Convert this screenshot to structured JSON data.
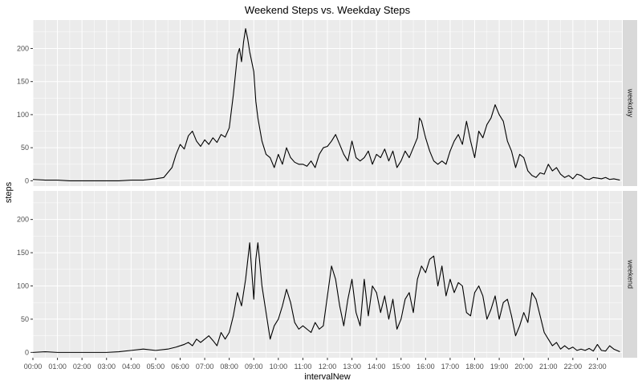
{
  "chart_data": {
    "type": "line",
    "title": "Weekend Steps vs. Weekday Steps",
    "xlabel": "intervalNew",
    "ylabel": "steps",
    "xlim": [
      "00:00",
      "24:00"
    ],
    "ylim": [
      -8,
      243
    ],
    "x_ticks": [
      "00:00",
      "01:00",
      "02:00",
      "03:00",
      "04:00",
      "05:00",
      "06:00",
      "07:00",
      "08:00",
      "09:00",
      "10:00",
      "11:00",
      "12:00",
      "13:00",
      "14:00",
      "15:00",
      "16:00",
      "17:00",
      "18:00",
      "19:00",
      "20:00",
      "21:00",
      "22:00",
      "23:00"
    ],
    "y_ticks": [
      0,
      50,
      100,
      150,
      200
    ],
    "grid": true,
    "legend": "none",
    "colors": {
      "line": "#000000",
      "panel": "#ebebeb",
      "grid": "#ffffff",
      "strip": "#d9d9d9"
    },
    "facets": [
      {
        "label": "weekday",
        "points": [
          [
            "00:00",
            2
          ],
          [
            "00:30",
            1
          ],
          [
            "01:00",
            1
          ],
          [
            "01:30",
            0
          ],
          [
            "02:00",
            0
          ],
          [
            "02:30",
            0
          ],
          [
            "03:00",
            0
          ],
          [
            "03:30",
            0
          ],
          [
            "04:00",
            1
          ],
          [
            "04:30",
            1
          ],
          [
            "05:00",
            3
          ],
          [
            "05:20",
            5
          ],
          [
            "05:40",
            20
          ],
          [
            "05:50",
            40
          ],
          [
            "06:00",
            55
          ],
          [
            "06:10",
            48
          ],
          [
            "06:20",
            68
          ],
          [
            "06:30",
            75
          ],
          [
            "06:40",
            60
          ],
          [
            "06:50",
            52
          ],
          [
            "07:00",
            62
          ],
          [
            "07:10",
            55
          ],
          [
            "07:20",
            65
          ],
          [
            "07:30",
            58
          ],
          [
            "07:40",
            70
          ],
          [
            "07:50",
            66
          ],
          [
            "08:00",
            80
          ],
          [
            "08:10",
            130
          ],
          [
            "08:20",
            190
          ],
          [
            "08:25",
            200
          ],
          [
            "08:30",
            180
          ],
          [
            "08:35",
            210
          ],
          [
            "08:40",
            230
          ],
          [
            "08:45",
            215
          ],
          [
            "08:50",
            195
          ],
          [
            "08:55",
            180
          ],
          [
            "09:00",
            165
          ],
          [
            "09:05",
            120
          ],
          [
            "09:10",
            95
          ],
          [
            "09:20",
            60
          ],
          [
            "09:30",
            40
          ],
          [
            "09:40",
            35
          ],
          [
            "09:50",
            20
          ],
          [
            "10:00",
            40
          ],
          [
            "10:10",
            25
          ],
          [
            "10:20",
            50
          ],
          [
            "10:30",
            35
          ],
          [
            "10:40",
            28
          ],
          [
            "10:50",
            25
          ],
          [
            "11:00",
            25
          ],
          [
            "11:10",
            22
          ],
          [
            "11:20",
            30
          ],
          [
            "11:30",
            20
          ],
          [
            "11:40",
            40
          ],
          [
            "11:50",
            50
          ],
          [
            "12:00",
            52
          ],
          [
            "12:10",
            60
          ],
          [
            "12:20",
            70
          ],
          [
            "12:30",
            55
          ],
          [
            "12:40",
            40
          ],
          [
            "12:50",
            30
          ],
          [
            "13:00",
            60
          ],
          [
            "13:10",
            35
          ],
          [
            "13:20",
            30
          ],
          [
            "13:30",
            35
          ],
          [
            "13:40",
            45
          ],
          [
            "13:50",
            25
          ],
          [
            "14:00",
            40
          ],
          [
            "14:10",
            35
          ],
          [
            "14:20",
            48
          ],
          [
            "14:30",
            30
          ],
          [
            "14:40",
            45
          ],
          [
            "14:50",
            20
          ],
          [
            "15:00",
            30
          ],
          [
            "15:10",
            45
          ],
          [
            "15:20",
            35
          ],
          [
            "15:30",
            50
          ],
          [
            "15:40",
            65
          ],
          [
            "15:45",
            95
          ],
          [
            "15:50",
            90
          ],
          [
            "16:00",
            65
          ],
          [
            "16:10",
            45
          ],
          [
            "16:20",
            30
          ],
          [
            "16:30",
            25
          ],
          [
            "16:40",
            30
          ],
          [
            "16:50",
            25
          ],
          [
            "17:00",
            45
          ],
          [
            "17:10",
            60
          ],
          [
            "17:20",
            70
          ],
          [
            "17:30",
            55
          ],
          [
            "17:40",
            90
          ],
          [
            "17:50",
            60
          ],
          [
            "18:00",
            35
          ],
          [
            "18:10",
            75
          ],
          [
            "18:20",
            65
          ],
          [
            "18:30",
            85
          ],
          [
            "18:40",
            95
          ],
          [
            "18:50",
            115
          ],
          [
            "19:00",
            100
          ],
          [
            "19:10",
            90
          ],
          [
            "19:20",
            60
          ],
          [
            "19:30",
            45
          ],
          [
            "19:40",
            20
          ],
          [
            "19:50",
            40
          ],
          [
            "20:00",
            35
          ],
          [
            "20:10",
            15
          ],
          [
            "20:20",
            8
          ],
          [
            "20:30",
            5
          ],
          [
            "20:40",
            12
          ],
          [
            "20:50",
            10
          ],
          [
            "21:00",
            25
          ],
          [
            "21:10",
            15
          ],
          [
            "21:20",
            20
          ],
          [
            "21:30",
            10
          ],
          [
            "21:40",
            5
          ],
          [
            "21:50",
            8
          ],
          [
            "22:00",
            3
          ],
          [
            "22:10",
            10
          ],
          [
            "22:20",
            8
          ],
          [
            "22:30",
            3
          ],
          [
            "22:40",
            2
          ],
          [
            "22:50",
            5
          ],
          [
            "23:00",
            4
          ],
          [
            "23:10",
            3
          ],
          [
            "23:20",
            5
          ],
          [
            "23:30",
            2
          ],
          [
            "23:40",
            3
          ],
          [
            "23:55",
            1
          ]
        ]
      },
      {
        "label": "weekend",
        "points": [
          [
            "00:00",
            0
          ],
          [
            "00:30",
            1
          ],
          [
            "01:00",
            0
          ],
          [
            "01:30",
            0
          ],
          [
            "02:00",
            0
          ],
          [
            "02:30",
            0
          ],
          [
            "03:00",
            0
          ],
          [
            "03:30",
            1
          ],
          [
            "04:00",
            3
          ],
          [
            "04:30",
            5
          ],
          [
            "05:00",
            3
          ],
          [
            "05:30",
            5
          ],
          [
            "05:50",
            8
          ],
          [
            "06:00",
            10
          ],
          [
            "06:10",
            12
          ],
          [
            "06:20",
            15
          ],
          [
            "06:30",
            10
          ],
          [
            "06:40",
            20
          ],
          [
            "06:50",
            15
          ],
          [
            "07:00",
            20
          ],
          [
            "07:10",
            25
          ],
          [
            "07:20",
            18
          ],
          [
            "07:30",
            10
          ],
          [
            "07:40",
            30
          ],
          [
            "07:50",
            20
          ],
          [
            "08:00",
            30
          ],
          [
            "08:10",
            55
          ],
          [
            "08:20",
            90
          ],
          [
            "08:30",
            70
          ],
          [
            "08:40",
            110
          ],
          [
            "08:50",
            165
          ],
          [
            "09:00",
            80
          ],
          [
            "09:05",
            140
          ],
          [
            "09:10",
            165
          ],
          [
            "09:20",
            100
          ],
          [
            "09:30",
            60
          ],
          [
            "09:40",
            20
          ],
          [
            "09:50",
            40
          ],
          [
            "10:00",
            50
          ],
          [
            "10:10",
            70
          ],
          [
            "10:20",
            95
          ],
          [
            "10:30",
            75
          ],
          [
            "10:40",
            45
          ],
          [
            "10:50",
            35
          ],
          [
            "11:00",
            40
          ],
          [
            "11:10",
            35
          ],
          [
            "11:20",
            30
          ],
          [
            "11:30",
            45
          ],
          [
            "11:40",
            35
          ],
          [
            "11:50",
            40
          ],
          [
            "12:00",
            85
          ],
          [
            "12:10",
            130
          ],
          [
            "12:20",
            110
          ],
          [
            "12:30",
            70
          ],
          [
            "12:40",
            40
          ],
          [
            "12:50",
            80
          ],
          [
            "13:00",
            110
          ],
          [
            "13:10",
            60
          ],
          [
            "13:20",
            40
          ],
          [
            "13:30",
            110
          ],
          [
            "13:40",
            55
          ],
          [
            "13:50",
            100
          ],
          [
            "14:00",
            90
          ],
          [
            "14:10",
            60
          ],
          [
            "14:20",
            85
          ],
          [
            "14:30",
            50
          ],
          [
            "14:40",
            80
          ],
          [
            "14:50",
            35
          ],
          [
            "15:00",
            50
          ],
          [
            "15:10",
            80
          ],
          [
            "15:20",
            90
          ],
          [
            "15:30",
            60
          ],
          [
            "15:40",
            110
          ],
          [
            "15:50",
            130
          ],
          [
            "16:00",
            120
          ],
          [
            "16:10",
            140
          ],
          [
            "16:20",
            145
          ],
          [
            "16:30",
            100
          ],
          [
            "16:40",
            130
          ],
          [
            "16:50",
            85
          ],
          [
            "17:00",
            110
          ],
          [
            "17:10",
            90
          ],
          [
            "17:20",
            105
          ],
          [
            "17:30",
            100
          ],
          [
            "17:40",
            60
          ],
          [
            "17:50",
            55
          ],
          [
            "18:00",
            90
          ],
          [
            "18:10",
            100
          ],
          [
            "18:20",
            85
          ],
          [
            "18:30",
            50
          ],
          [
            "18:40",
            65
          ],
          [
            "18:50",
            85
          ],
          [
            "19:00",
            50
          ],
          [
            "19:10",
            75
          ],
          [
            "19:20",
            80
          ],
          [
            "19:30",
            55
          ],
          [
            "19:40",
            25
          ],
          [
            "19:50",
            40
          ],
          [
            "20:00",
            60
          ],
          [
            "20:10",
            45
          ],
          [
            "20:20",
            90
          ],
          [
            "20:30",
            80
          ],
          [
            "20:40",
            55
          ],
          [
            "20:50",
            30
          ],
          [
            "21:00",
            20
          ],
          [
            "21:10",
            10
          ],
          [
            "21:20",
            15
          ],
          [
            "21:30",
            5
          ],
          [
            "21:40",
            10
          ],
          [
            "21:50",
            5
          ],
          [
            "22:00",
            8
          ],
          [
            "22:10",
            3
          ],
          [
            "22:20",
            5
          ],
          [
            "22:30",
            3
          ],
          [
            "22:40",
            6
          ],
          [
            "22:50",
            2
          ],
          [
            "23:00",
            12
          ],
          [
            "23:10",
            3
          ],
          [
            "23:20",
            2
          ],
          [
            "23:30",
            10
          ],
          [
            "23:40",
            5
          ],
          [
            "23:55",
            1
          ]
        ]
      }
    ]
  }
}
